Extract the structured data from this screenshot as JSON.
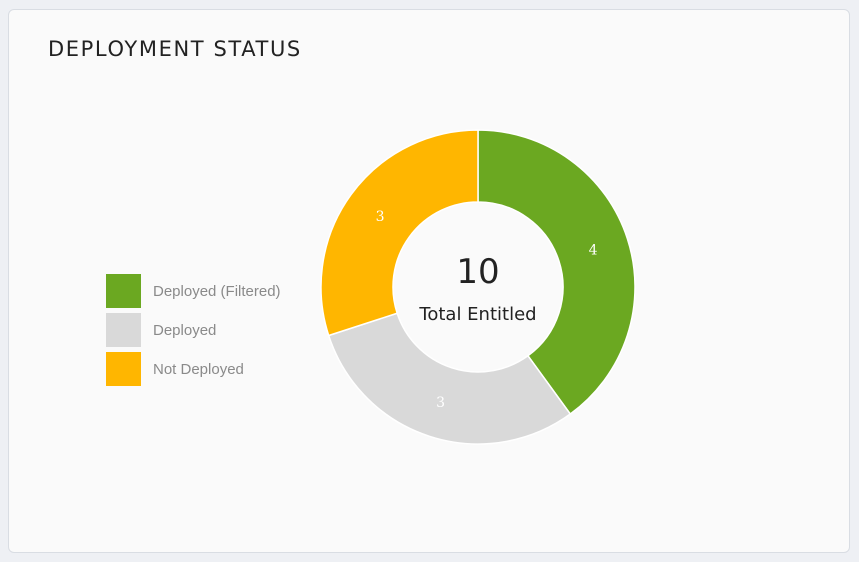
{
  "panel": {
    "title": "DEPLOYMENT STATUS"
  },
  "legend": {
    "items": [
      {
        "label": "Deployed (Filtered)",
        "color": "#6ba821"
      },
      {
        "label": "Deployed",
        "color": "#d9d9d9"
      },
      {
        "label": "Not Deployed",
        "color": "#ffb600"
      }
    ]
  },
  "chart_data": {
    "type": "pie",
    "donut": true,
    "categories": [
      "Deployed (Filtered)",
      "Deployed",
      "Not Deployed"
    ],
    "values": [
      4,
      3,
      3
    ],
    "colors": [
      "#6ba821",
      "#d9d9d9",
      "#ffb600"
    ],
    "center": {
      "total": "10",
      "caption": "Total Entitled"
    },
    "legend_position": "left"
  }
}
